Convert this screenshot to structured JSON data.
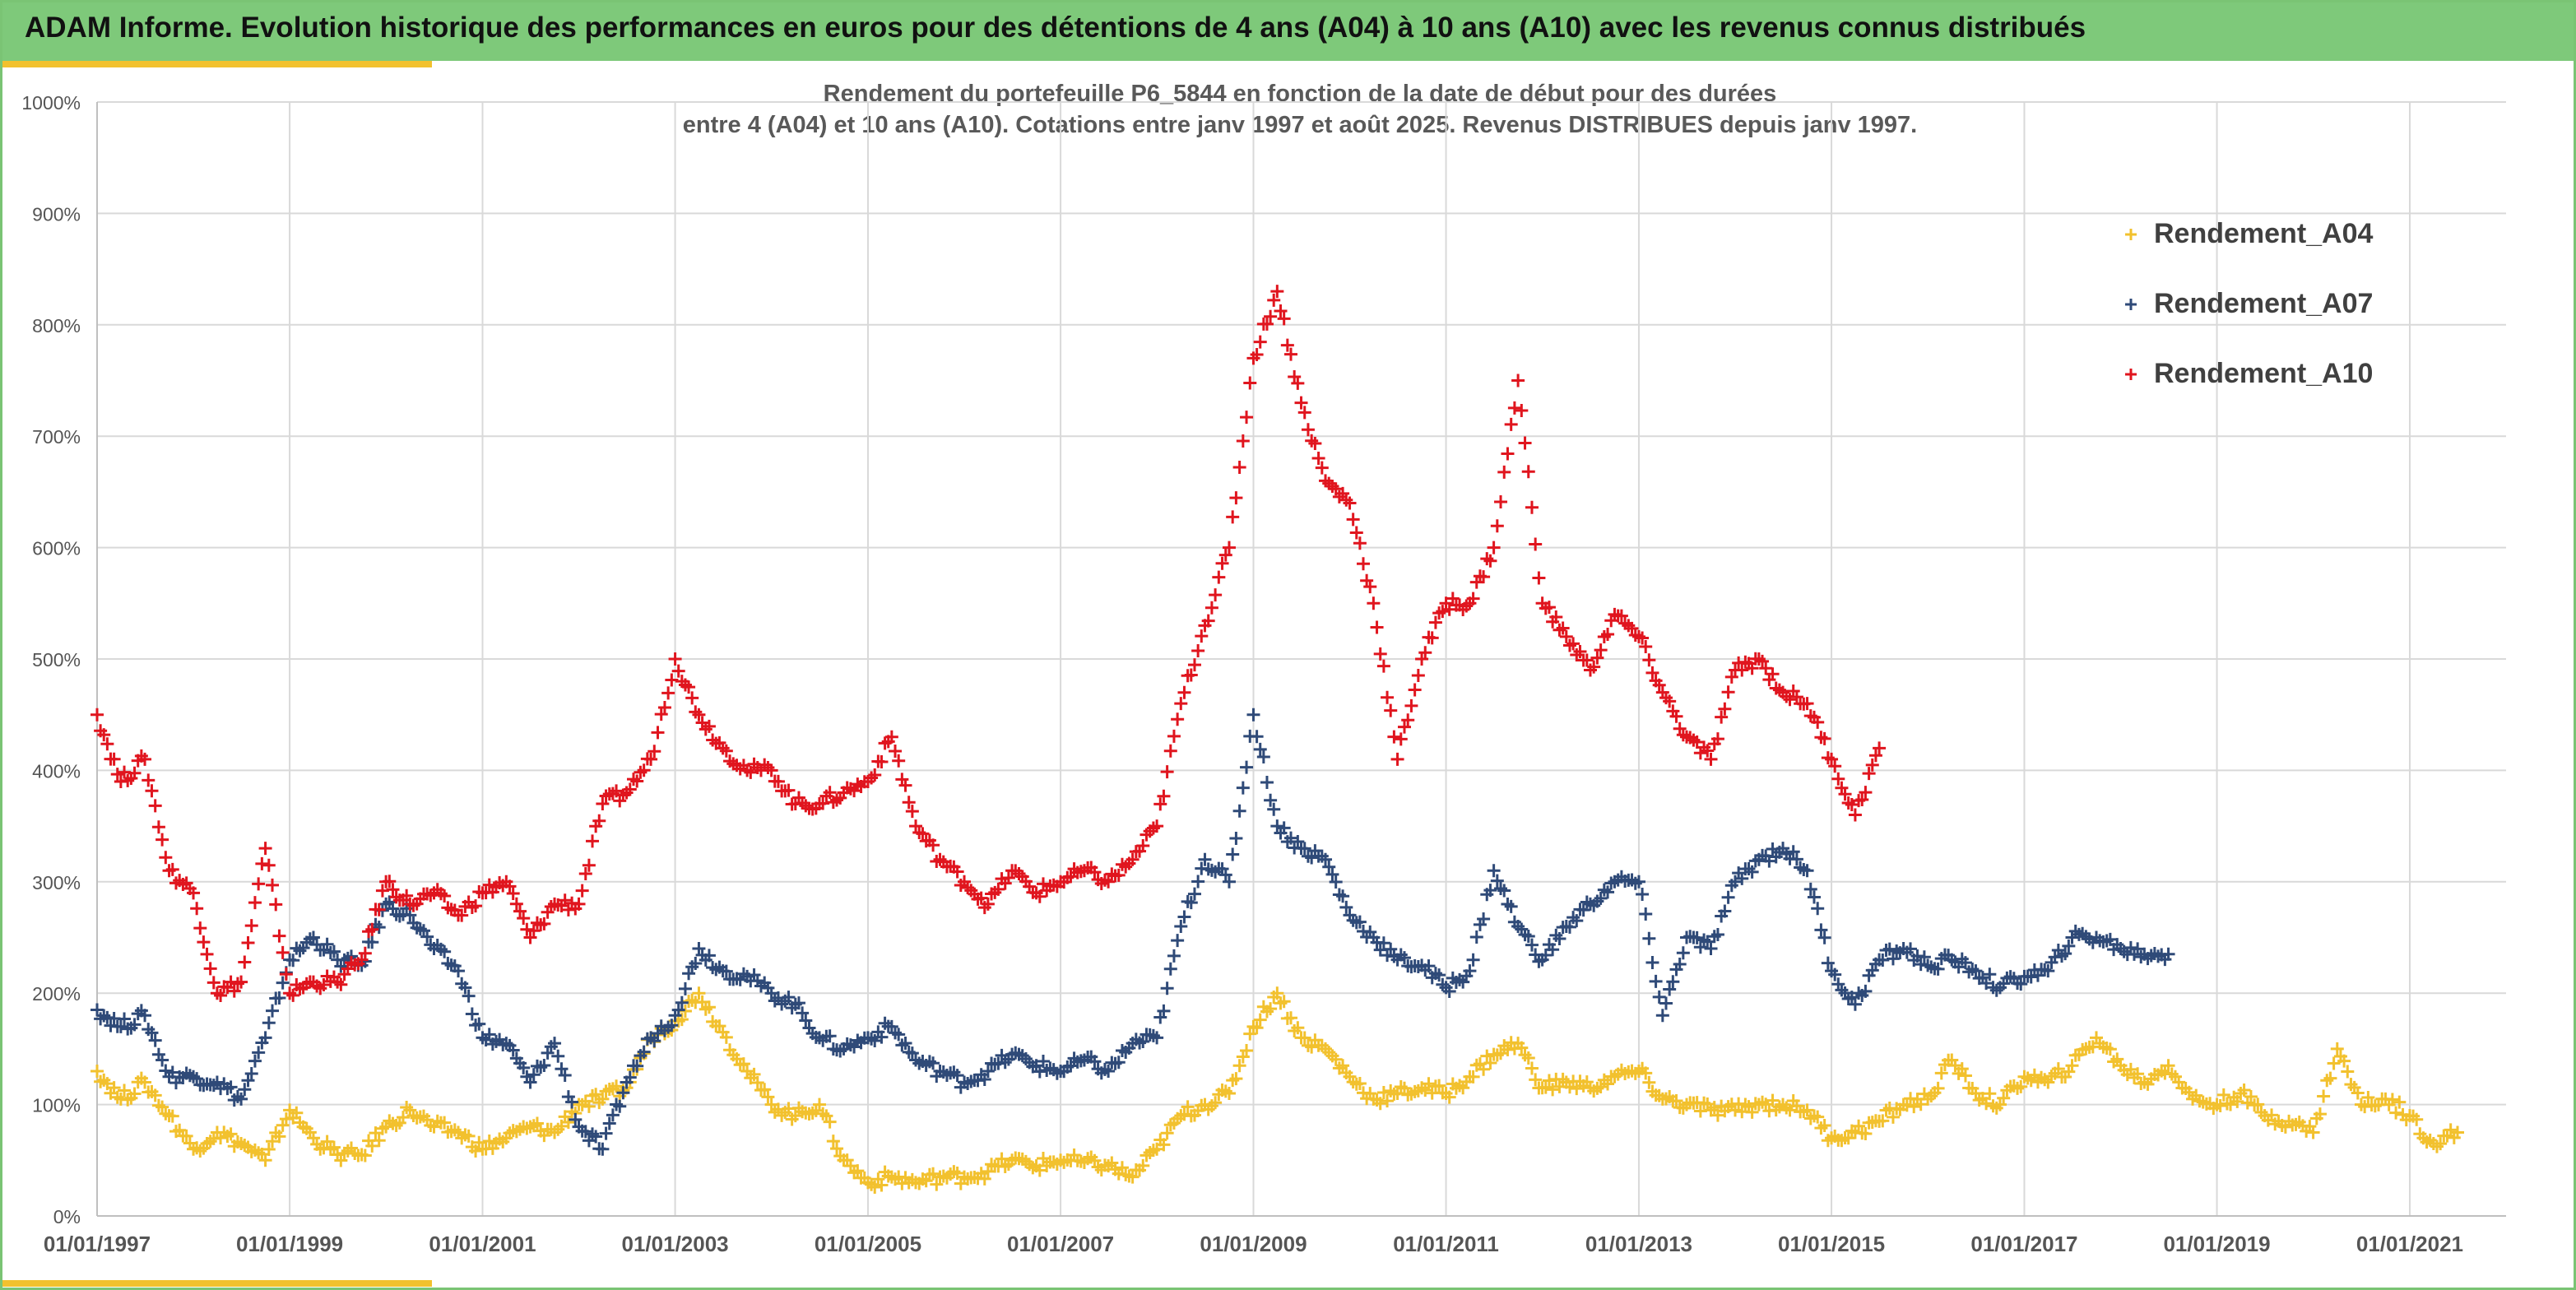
{
  "header": {
    "title": "ADAM Informe. Evolution historique des performances en euros pour des détentions de 4 ans (A04) à 10 ans (A10) avec les revenus connus distribués"
  },
  "colors": {
    "header_bg": "#7ec97a",
    "accent": "#f2c12e",
    "A04": "#f2c12e",
    "A07": "#2f4a78",
    "A10": "#e0151e",
    "grid": "#d9d9d9"
  },
  "chart_data": {
    "type": "scatter",
    "title_line1": "Rendement du portefeuille P6_5844 en fonction de la date de début pour des durées",
    "title_line2": "entre 4 (A04) et 10 ans (A10). Cotations entre janv 1997 et août 2025. Revenus DISTRIBUES depuis janv 1997.",
    "x_axis": {
      "min": "1997-01-01",
      "max": "2022-01-01",
      "ticks": [
        "01/01/1997",
        "01/01/1999",
        "01/01/2001",
        "01/01/2003",
        "01/01/2005",
        "01/01/2007",
        "01/01/2009",
        "01/01/2011",
        "01/01/2013",
        "01/01/2015",
        "01/01/2017",
        "01/01/2019",
        "01/01/2021"
      ]
    },
    "y_axis": {
      "min": 0,
      "max": 10,
      "format": "percent",
      "ticks": [
        "0%",
        "100%",
        "200%",
        "300%",
        "400%",
        "500%",
        "600%",
        "700%",
        "800%",
        "900%",
        "1000%"
      ]
    },
    "grid": true,
    "legend_position": "top-right",
    "marker": "+",
    "series": [
      {
        "name": "Rendement_A04",
        "color": "#f2c12e",
        "x": [
          "1997-01",
          "1997-04",
          "1997-07",
          "1997-10",
          "1998-01",
          "1998-04",
          "1998-07",
          "1998-10",
          "1999-01",
          "1999-04",
          "1999-07",
          "1999-10",
          "2000-01",
          "2000-04",
          "2000-07",
          "2000-10",
          "2001-01",
          "2001-04",
          "2001-07",
          "2001-10",
          "2002-01",
          "2002-04",
          "2002-07",
          "2002-10",
          "2003-01",
          "2003-04",
          "2003-07",
          "2003-10",
          "2004-01",
          "2004-04",
          "2004-07",
          "2004-10",
          "2005-01",
          "2005-04",
          "2005-07",
          "2005-10",
          "2006-01",
          "2006-04",
          "2006-07",
          "2006-10",
          "2007-01",
          "2007-04",
          "2007-07",
          "2007-10",
          "2008-01",
          "2008-04",
          "2008-07",
          "2008-10",
          "2009-01",
          "2009-04",
          "2009-07",
          "2009-10",
          "2010-01",
          "2010-04",
          "2010-07",
          "2010-10",
          "2011-01",
          "2011-04",
          "2011-07",
          "2011-10",
          "2012-01",
          "2012-04",
          "2012-07",
          "2012-10",
          "2013-01",
          "2013-04",
          "2013-07",
          "2013-10",
          "2014-01",
          "2014-04",
          "2014-07",
          "2014-10",
          "2015-01",
          "2015-04",
          "2015-07",
          "2015-10",
          "2016-01",
          "2016-04",
          "2016-07",
          "2016-10",
          "2017-01",
          "2017-04",
          "2017-07",
          "2017-10",
          "2018-01",
          "2018-04",
          "2018-07",
          "2018-10",
          "2019-01",
          "2019-04",
          "2019-07",
          "2019-10",
          "2020-01",
          "2020-04",
          "2020-07",
          "2020-10",
          "2021-01",
          "2021-04",
          "2021-07"
        ],
        "y": [
          1.3,
          1.05,
          1.2,
          0.9,
          0.6,
          0.75,
          0.65,
          0.5,
          0.95,
          0.7,
          0.55,
          0.55,
          0.8,
          0.95,
          0.8,
          0.75,
          0.6,
          0.7,
          0.8,
          0.75,
          1.0,
          1.05,
          1.15,
          1.6,
          1.75,
          2.0,
          1.65,
          1.3,
          1.0,
          0.9,
          1.0,
          0.5,
          0.3,
          0.35,
          0.3,
          0.35,
          0.35,
          0.4,
          0.5,
          0.45,
          0.5,
          0.48,
          0.45,
          0.35,
          0.6,
          0.9,
          1.0,
          1.1,
          1.7,
          2.0,
          1.6,
          1.5,
          1.25,
          1.05,
          1.1,
          1.15,
          1.1,
          1.25,
          1.45,
          1.55,
          1.15,
          1.2,
          1.15,
          1.25,
          1.3,
          1.05,
          1.0,
          0.95,
          0.95,
          1.0,
          1.0,
          0.95,
          0.7,
          0.75,
          0.85,
          1.0,
          1.05,
          1.4,
          1.1,
          1.0,
          1.25,
          1.2,
          1.35,
          1.6,
          1.35,
          1.2,
          1.35,
          1.05,
          1.0,
          1.1,
          0.9,
          0.85,
          0.75,
          1.5,
          1.0,
          1.05,
          0.9,
          0.65,
          0.75
        ]
      },
      {
        "name": "Rendement_A07",
        "color": "#2f4a78",
        "x": [
          "1997-01",
          "1997-04",
          "1997-07",
          "1997-10",
          "1998-01",
          "1998-04",
          "1998-07",
          "1998-10",
          "1999-01",
          "1999-04",
          "1999-07",
          "1999-10",
          "2000-01",
          "2000-04",
          "2000-07",
          "2000-10",
          "2001-01",
          "2001-04",
          "2001-07",
          "2001-10",
          "2002-01",
          "2002-04",
          "2002-07",
          "2002-10",
          "2003-01",
          "2003-04",
          "2003-07",
          "2003-10",
          "2004-01",
          "2004-04",
          "2004-07",
          "2004-10",
          "2005-01",
          "2005-04",
          "2005-07",
          "2005-10",
          "2006-01",
          "2006-04",
          "2006-07",
          "2006-10",
          "2007-01",
          "2007-04",
          "2007-07",
          "2007-10",
          "2008-01",
          "2008-04",
          "2008-07",
          "2008-10",
          "2009-01",
          "2009-04",
          "2009-07",
          "2009-10",
          "2010-01",
          "2010-04",
          "2010-07",
          "2010-10",
          "2011-01",
          "2011-04",
          "2011-07",
          "2011-10",
          "2012-01",
          "2012-04",
          "2012-07",
          "2012-10",
          "2013-01",
          "2013-04",
          "2013-07",
          "2013-10",
          "2014-01",
          "2014-04",
          "2014-07",
          "2014-10",
          "2015-01",
          "2015-04",
          "2015-07",
          "2015-10",
          "2016-01",
          "2016-04",
          "2016-07",
          "2016-10",
          "2017-01",
          "2017-04",
          "2017-07",
          "2017-10",
          "2018-01",
          "2018-04",
          "2018-07"
        ],
        "y": [
          1.85,
          1.7,
          1.8,
          1.25,
          1.25,
          1.2,
          1.05,
          1.6,
          2.3,
          2.5,
          2.3,
          2.25,
          2.8,
          2.7,
          2.4,
          2.2,
          1.6,
          1.55,
          1.2,
          1.55,
          0.8,
          0.6,
          1.2,
          1.6,
          1.8,
          2.4,
          2.2,
          2.15,
          2.0,
          1.9,
          1.6,
          1.5,
          1.6,
          1.7,
          1.4,
          1.3,
          1.2,
          1.3,
          1.45,
          1.35,
          1.3,
          1.4,
          1.3,
          1.55,
          1.6,
          2.6,
          3.2,
          3.0,
          4.5,
          3.5,
          3.3,
          3.2,
          2.7,
          2.5,
          2.3,
          2.25,
          2.05,
          2.2,
          3.1,
          2.6,
          2.3,
          2.6,
          2.8,
          3.0,
          3.0,
          1.8,
          2.5,
          2.4,
          3.0,
          3.2,
          3.3,
          3.1,
          2.2,
          1.9,
          2.3,
          2.4,
          2.25,
          2.3,
          2.2,
          2.05,
          2.15,
          2.2,
          2.5,
          2.5,
          2.4,
          2.35,
          2.35
        ]
      },
      {
        "name": "Rendement_A10",
        "color": "#e0151e",
        "x": [
          "1997-01",
          "1997-04",
          "1997-07",
          "1997-10",
          "1998-01",
          "1998-04",
          "1998-07",
          "1998-10",
          "1999-01",
          "1999-04",
          "1999-07",
          "1999-10",
          "2000-01",
          "2000-04",
          "2000-07",
          "2000-10",
          "2001-01",
          "2001-04",
          "2001-07",
          "2001-10",
          "2002-01",
          "2002-04",
          "2002-07",
          "2002-10",
          "2003-01",
          "2003-04",
          "2003-07",
          "2003-10",
          "2004-01",
          "2004-04",
          "2004-07",
          "2004-10",
          "2005-01",
          "2005-04",
          "2005-07",
          "2005-10",
          "2006-01",
          "2006-04",
          "2006-07",
          "2006-10",
          "2007-01",
          "2007-04",
          "2007-07",
          "2007-10",
          "2008-01",
          "2008-04",
          "2008-07",
          "2008-10",
          "2009-01",
          "2009-04",
          "2009-07",
          "2009-10",
          "2010-01",
          "2010-04",
          "2010-07",
          "2010-10",
          "2011-01",
          "2011-04",
          "2011-07",
          "2011-10",
          "2012-01",
          "2012-04",
          "2012-07",
          "2012-10",
          "2013-01",
          "2013-04",
          "2013-07",
          "2013-10",
          "2014-01",
          "2014-04",
          "2014-07",
          "2014-10",
          "2015-01",
          "2015-04",
          "2015-07"
        ],
        "y": [
          4.5,
          3.9,
          4.1,
          3.1,
          2.9,
          2.0,
          2.1,
          3.3,
          2.0,
          2.1,
          2.1,
          2.3,
          3.0,
          2.8,
          2.9,
          2.7,
          2.9,
          3.0,
          2.5,
          2.8,
          2.8,
          3.7,
          3.8,
          4.1,
          5.0,
          4.5,
          4.2,
          4.0,
          4.0,
          3.7,
          3.7,
          3.8,
          3.9,
          4.3,
          3.5,
          3.2,
          3.0,
          2.8,
          3.1,
          2.9,
          3.0,
          3.1,
          3.0,
          3.2,
          3.5,
          4.6,
          5.3,
          6.0,
          7.7,
          8.3,
          7.3,
          6.6,
          6.4,
          5.5,
          4.1,
          5.0,
          5.5,
          5.5,
          6.0,
          7.5,
          5.5,
          5.2,
          4.9,
          5.4,
          5.2,
          4.7,
          4.3,
          4.1,
          4.9,
          5.0,
          4.7,
          4.6,
          4.1,
          3.6,
          4.2
        ]
      }
    ],
    "legend": [
      "Rendement_A04",
      "Rendement_A07",
      "Rendement_A10"
    ]
  }
}
